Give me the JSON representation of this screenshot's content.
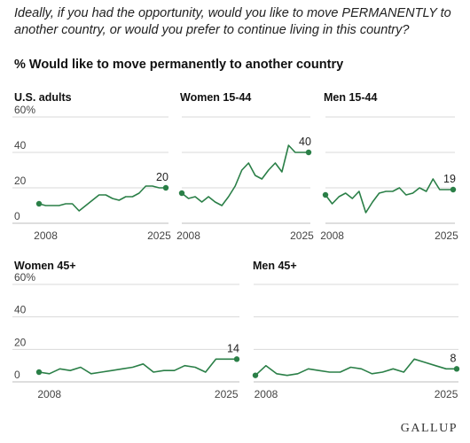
{
  "question": "Ideally, if you had the opportunity, would you like to move PERMANENTLY to another country, or would you prefer to continue living in this country?",
  "subtitle": "% Would like to move permanently to another country",
  "brand": "GALLUP",
  "colors": {
    "line": "#2a7f47",
    "grid": "#d9d9d9",
    "axis": "#bdbdbd",
    "text": "#444444"
  },
  "chart_data": [
    {
      "type": "line",
      "title": "U.S. adults",
      "x_tick_labels": [
        "2008",
        "2025"
      ],
      "y_tick_labels": [
        "0",
        "20",
        "40",
        "60%"
      ],
      "ylim": [
        0,
        60
      ],
      "last_value_label": "20",
      "series": [
        {
          "x": [
            2007,
            2008,
            2009,
            2010,
            2011,
            2012,
            2013,
            2014,
            2015,
            2016,
            2017,
            2018,
            2019,
            2020,
            2021,
            2022,
            2023,
            2024,
            2025,
            2026
          ],
          "y": [
            11,
            10,
            10,
            10,
            11,
            11,
            7,
            10,
            13,
            16,
            16,
            14,
            13,
            15,
            15,
            17,
            21,
            21,
            20,
            20
          ]
        }
      ]
    },
    {
      "type": "line",
      "title": "Women 15-44",
      "x_tick_labels": [
        "2008",
        "2025"
      ],
      "y_tick_labels": [
        "0",
        "20",
        "40",
        "60%"
      ],
      "ylim": [
        0,
        60
      ],
      "last_value_label": "40",
      "series": [
        {
          "x": [
            2007,
            2008,
            2009,
            2010,
            2011,
            2012,
            2013,
            2014,
            2015,
            2016,
            2017,
            2018,
            2019,
            2020,
            2021,
            2022,
            2023,
            2024,
            2025,
            2026
          ],
          "y": [
            17,
            14,
            15,
            12,
            15,
            12,
            10,
            15,
            21,
            30,
            34,
            27,
            25,
            30,
            34,
            29,
            44,
            40,
            40,
            40
          ]
        }
      ]
    },
    {
      "type": "line",
      "title": "Men 15-44",
      "x_tick_labels": [
        "2008",
        "2025"
      ],
      "y_tick_labels": [
        "0",
        "20",
        "40",
        "60%"
      ],
      "ylim": [
        0,
        60
      ],
      "last_value_label": "19",
      "series": [
        {
          "x": [
            2007,
            2008,
            2009,
            2010,
            2011,
            2012,
            2013,
            2014,
            2015,
            2016,
            2017,
            2018,
            2019,
            2020,
            2021,
            2022,
            2023,
            2024,
            2025,
            2026
          ],
          "y": [
            16,
            11,
            15,
            17,
            14,
            18,
            6,
            12,
            17,
            18,
            18,
            20,
            16,
            17,
            20,
            18,
            25,
            19,
            19,
            19
          ]
        }
      ]
    },
    {
      "type": "line",
      "title": "Women 45+",
      "x_tick_labels": [
        "2008",
        "2025"
      ],
      "y_tick_labels": [
        "0",
        "20",
        "40",
        "60%"
      ],
      "ylim": [
        0,
        60
      ],
      "last_value_label": "14",
      "series": [
        {
          "x": [
            2007,
            2008,
            2009,
            2010,
            2011,
            2012,
            2013,
            2014,
            2015,
            2016,
            2017,
            2018,
            2019,
            2020,
            2021,
            2022,
            2023,
            2024,
            2025,
            2026
          ],
          "y": [
            6,
            5,
            8,
            7,
            9,
            5,
            6,
            7,
            8,
            9,
            11,
            6,
            7,
            7,
            10,
            9,
            6,
            14,
            14,
            14
          ]
        }
      ]
    },
    {
      "type": "line",
      "title": "Men 45+",
      "x_tick_labels": [
        "2008",
        "2025"
      ],
      "y_tick_labels": [
        "0",
        "20",
        "40",
        "60%"
      ],
      "ylim": [
        0,
        60
      ],
      "last_value_label": "8",
      "series": [
        {
          "x": [
            2007,
            2008,
            2009,
            2010,
            2011,
            2012,
            2013,
            2014,
            2015,
            2016,
            2017,
            2018,
            2019,
            2020,
            2021,
            2022,
            2023,
            2024,
            2025,
            2026
          ],
          "y": [
            4,
            10,
            5,
            4,
            5,
            8,
            7,
            6,
            6,
            9,
            8,
            5,
            6,
            8,
            6,
            14,
            12,
            10,
            8,
            8
          ]
        }
      ]
    }
  ]
}
